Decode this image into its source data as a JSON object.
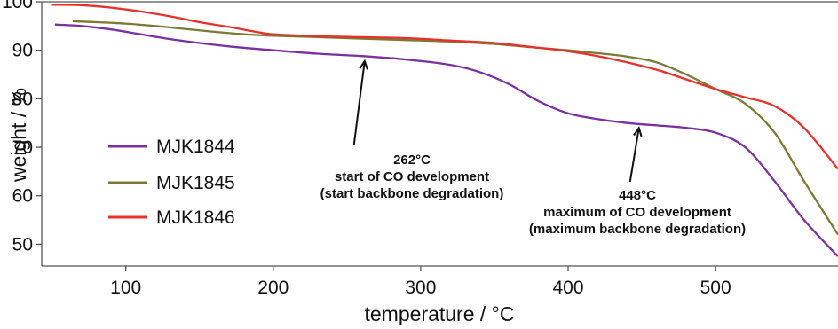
{
  "chart_data": {
    "type": "line",
    "xlabel": "temperature / °C",
    "ylabel": "weight / %",
    "xlim": [
      43,
      583
    ],
    "ylim": [
      45.5,
      100
    ],
    "xticks": [
      100,
      200,
      300,
      400,
      500
    ],
    "yticks": [
      50,
      60,
      70,
      80,
      90,
      100
    ],
    "grid": false,
    "legend_position": "left",
    "series": [
      {
        "name": "MJK1844",
        "color": "#7b2fa0",
        "x": [
          52,
          70,
          90,
          110,
          130,
          150,
          170,
          200,
          230,
          260,
          290,
          320,
          340,
          360,
          380,
          400,
          420,
          440,
          460,
          480,
          500,
          520,
          540,
          560,
          583
        ],
        "y": [
          95.3,
          95.0,
          94.3,
          93.3,
          92.3,
          91.5,
          90.8,
          90.0,
          89.3,
          88.8,
          88.1,
          87.0,
          85.5,
          83.0,
          79.5,
          77.0,
          75.8,
          75.0,
          74.5,
          74.0,
          73.0,
          70.0,
          63.0,
          55.0,
          47.5
        ]
      },
      {
        "name": "MJK1845",
        "color": "#7b7a35",
        "x": [
          64,
          80,
          100,
          120,
          140,
          160,
          180,
          200,
          230,
          260,
          290,
          320,
          350,
          380,
          400,
          420,
          440,
          460,
          480,
          500,
          520,
          540,
          560,
          583
        ],
        "y": [
          96.0,
          95.8,
          95.5,
          95.0,
          94.4,
          93.8,
          93.3,
          93.0,
          92.7,
          92.4,
          92.1,
          91.8,
          91.3,
          90.5,
          90.0,
          89.4,
          88.7,
          87.5,
          85.0,
          82.0,
          79.0,
          73.0,
          63.0,
          52.0
        ]
      },
      {
        "name": "MJK1846",
        "color": "#e8312b",
        "x": [
          50,
          70,
          90,
          110,
          130,
          150,
          170,
          190,
          200,
          230,
          260,
          290,
          320,
          350,
          380,
          400,
          420,
          440,
          460,
          480,
          500,
          520,
          540,
          560,
          583
        ],
        "y": [
          99.4,
          99.3,
          98.8,
          98.0,
          97.0,
          95.8,
          94.8,
          93.7,
          93.3,
          92.9,
          92.7,
          92.5,
          92.0,
          91.5,
          90.5,
          89.8,
          88.8,
          87.5,
          86.0,
          84.0,
          82.0,
          80.3,
          78.5,
          74.0,
          65.5
        ]
      }
    ],
    "annotations": [
      {
        "lines": [
          "262°C",
          "start of CO development",
          "(start backbone degradation)"
        ],
        "arrow_x": 262,
        "arrow_y": 88.5
      },
      {
        "lines": [
          "448°C",
          "maximum of CO development",
          "(maximum backbone degradation)"
        ],
        "arrow_x": 448,
        "arrow_y": 74.7
      }
    ]
  }
}
